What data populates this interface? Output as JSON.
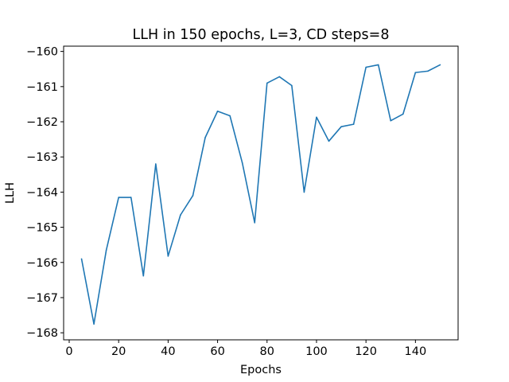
{
  "chart_data": {
    "type": "line",
    "title": "LLH in 150 epochs, L=3, CD steps=8",
    "xlabel": "Epochs",
    "ylabel": "LLH",
    "xlim": [
      -2.25,
      157.25
    ],
    "ylim": [
      -168.2,
      -159.85
    ],
    "xticks": [
      0,
      20,
      40,
      60,
      80,
      100,
      120,
      140
    ],
    "yticks": [
      -168,
      -167,
      -166,
      -165,
      -164,
      -163,
      -162,
      -161,
      -160
    ],
    "grid": false,
    "color": "#1f77b4",
    "series": [
      {
        "x": [
          5,
          10,
          15,
          20,
          25,
          30,
          35,
          40,
          45,
          50,
          55,
          60,
          65,
          70,
          75,
          80,
          85,
          90,
          95,
          100,
          105,
          110,
          115,
          120,
          125,
          130,
          135,
          140,
          145,
          150
        ],
        "y": [
          -165.9,
          -167.75,
          -165.65,
          -164.15,
          -164.15,
          -166.38,
          -163.2,
          -165.82,
          -164.65,
          -164.1,
          -162.45,
          -161.7,
          -161.83,
          -163.17,
          -164.87,
          -160.9,
          -160.72,
          -160.97,
          -164.0,
          -161.87,
          -162.55,
          -162.14,
          -162.07,
          -160.45,
          -160.38,
          -161.97,
          -161.78,
          -160.6,
          -160.56,
          -160.38
        ]
      }
    ]
  }
}
